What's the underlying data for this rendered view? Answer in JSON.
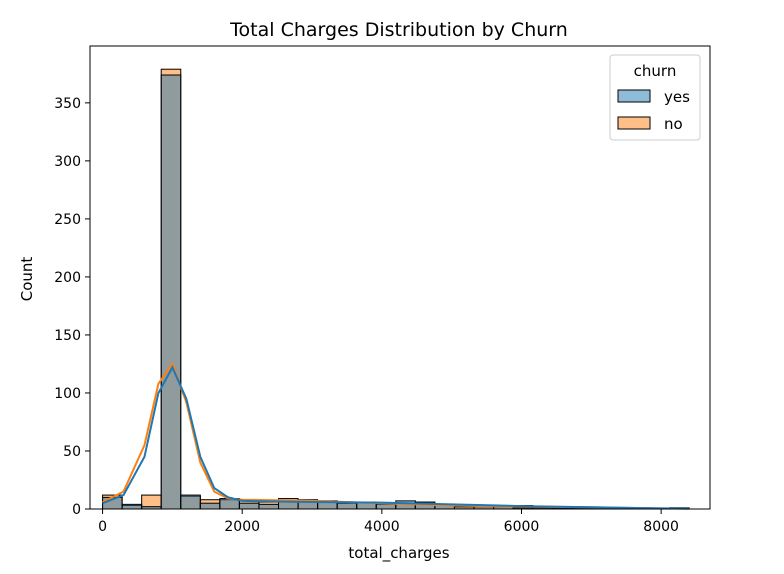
{
  "chart_data": {
    "type": "bar",
    "title": "Total Charges Distribution by Churn",
    "xlabel": "total_charges",
    "ylabel": "Count",
    "xlim": [
      -180,
      8700
    ],
    "ylim": [
      0,
      399
    ],
    "x_ticks": [
      0,
      2000,
      4000,
      6000,
      8000
    ],
    "y_ticks": [
      0,
      50,
      100,
      150,
      200,
      250,
      300,
      350
    ],
    "bin_edges": [
      0,
      280,
      560,
      840,
      1120,
      1400,
      1680,
      1960,
      2240,
      2520,
      2800,
      3080,
      3360,
      3640,
      3920,
      4200,
      4480,
      4760,
      5040,
      5320,
      5600,
      5880,
      6160,
      6440,
      6720,
      7000,
      7280,
      7560,
      7840,
      8120,
      8400
    ],
    "legend": {
      "title": "churn",
      "position": "upper right"
    },
    "series": [
      {
        "name": "yes",
        "color": "#1f77b4",
        "values": [
          10,
          4,
          2,
          374,
          12,
          5,
          9,
          5,
          4,
          7,
          7,
          7,
          5,
          6,
          5,
          7,
          6,
          4,
          2,
          2,
          2,
          1,
          1,
          1,
          1,
          1,
          1,
          1,
          0,
          1
        ],
        "kde": [
          [
            0,
            5
          ],
          [
            300,
            12
          ],
          [
            600,
            45
          ],
          [
            800,
            100
          ],
          [
            1000,
            122
          ],
          [
            1200,
            95
          ],
          [
            1400,
            45
          ],
          [
            1600,
            18
          ],
          [
            1800,
            10
          ],
          [
            2000,
            7
          ],
          [
            3000,
            6
          ],
          [
            4000,
            5.5
          ],
          [
            5000,
            4
          ],
          [
            6000,
            2.5
          ],
          [
            7000,
            1.5
          ],
          [
            8000,
            0.5
          ],
          [
            8400,
            0.3
          ]
        ]
      },
      {
        "name": "no",
        "color": "#ff7f0e",
        "values": [
          12,
          3,
          12,
          379,
          11,
          8,
          8,
          7,
          6,
          9,
          8,
          7,
          6,
          6,
          4,
          5,
          5,
          4,
          2,
          3,
          2,
          3,
          2,
          1,
          1,
          1,
          1,
          0,
          0,
          1
        ],
        "kde": [
          [
            0,
            6
          ],
          [
            300,
            15
          ],
          [
            600,
            55
          ],
          [
            800,
            108
          ],
          [
            1000,
            125
          ],
          [
            1200,
            92
          ],
          [
            1400,
            40
          ],
          [
            1600,
            15
          ],
          [
            1800,
            9
          ],
          [
            2000,
            8
          ],
          [
            3000,
            7
          ],
          [
            4000,
            5
          ],
          [
            5000,
            3
          ],
          [
            6000,
            2
          ],
          [
            7000,
            1.5
          ],
          [
            8000,
            0.5
          ],
          [
            8400,
            0.3
          ]
        ]
      }
    ]
  }
}
